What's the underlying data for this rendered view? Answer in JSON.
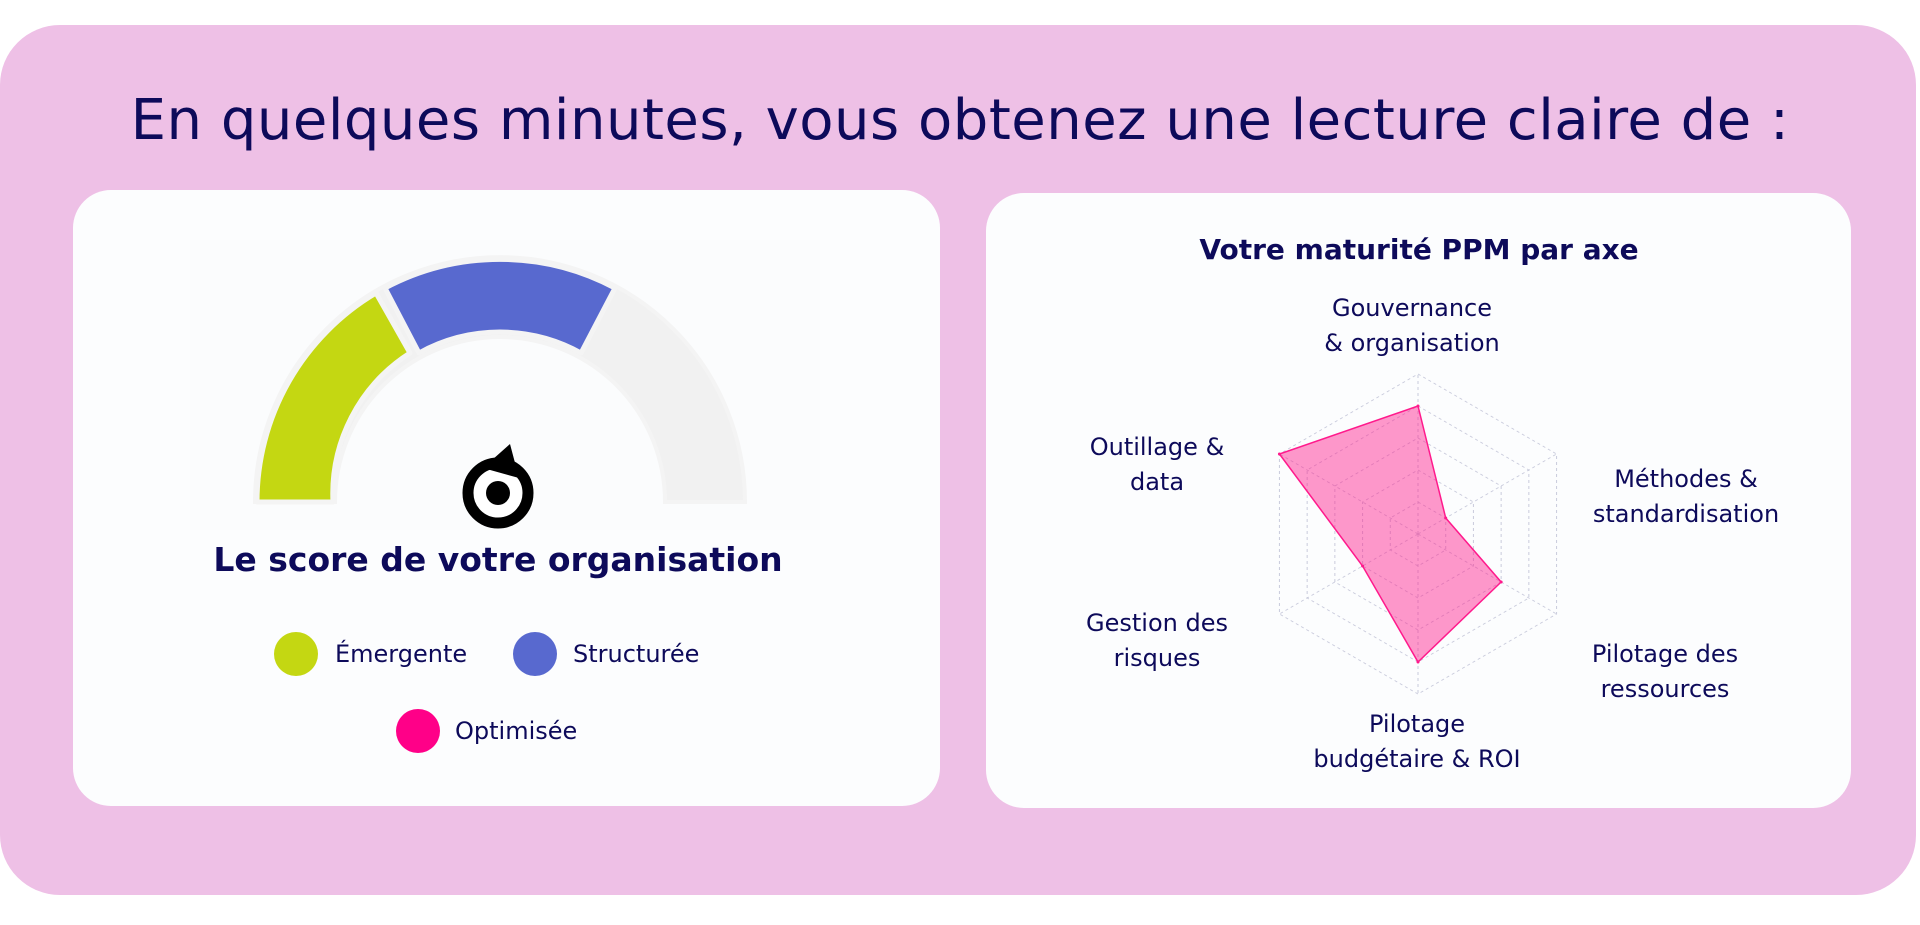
{
  "heading": "En quelques minutes, vous obtenez une lecture claire de :",
  "score_card": {
    "title": "Le score de votre organisation",
    "legend": [
      {
        "label": "Émergente",
        "color": "#c4d712"
      },
      {
        "label": "Structurée",
        "color": "#5869cf"
      },
      {
        "label": "Optimisée",
        "color": "#ff0088"
      }
    ]
  },
  "radar_card": {
    "title": "Votre maturité PPM par axe",
    "axes": [
      [
        "Gouvernance",
        "& organisation"
      ],
      [
        "Méthodes &",
        "standardisation"
      ],
      [
        "Pilotage des",
        "ressources"
      ],
      [
        "Pilotage",
        "budgétaire & ROI"
      ],
      [
        "Gestion des",
        "risques"
      ],
      [
        "Outillage &",
        "data"
      ]
    ]
  },
  "chart_data": {
    "type": "radar",
    "title": "Votre maturité PPM par axe",
    "categories": [
      "Gouvernance & organisation",
      "Méthodes & standardisation",
      "Pilotage des ressources",
      "Pilotage budgétaire & ROI",
      "Gestion des risques",
      "Outillage & data"
    ],
    "values": [
      4,
      1,
      3,
      4,
      2,
      5
    ],
    "range": [
      0,
      5
    ],
    "rings": 5,
    "color": "#ff1a8c"
  }
}
